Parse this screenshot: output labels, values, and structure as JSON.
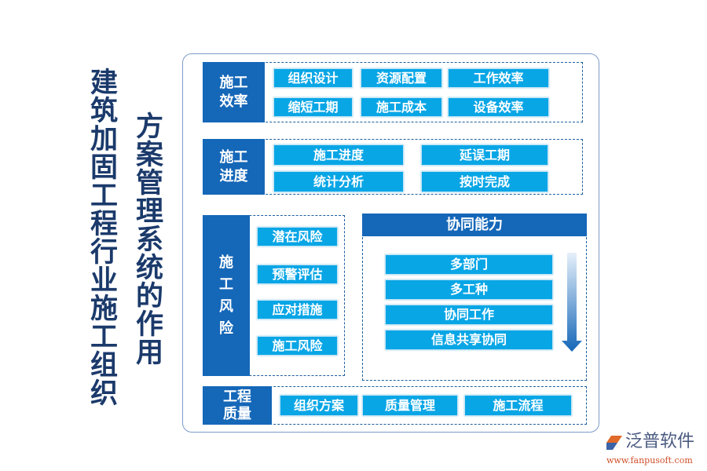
{
  "title_main": "建筑加固工程行业施工组织",
  "title_sub": "方案管理系统的作用",
  "efficiency": {
    "label": "施工\n效率",
    "items": [
      "组织设计",
      "资源配置",
      "工作效率",
      "缩短工期",
      "施工成本",
      "设备效率"
    ]
  },
  "progress": {
    "label": "施工\n进度",
    "items": [
      "施工进度",
      "延误工期",
      "统计分析",
      "按时完成"
    ]
  },
  "risk": {
    "label": "施\n工\n风\n险",
    "items": [
      "潜在风险",
      "预警评估",
      "应对措施",
      "施工风险"
    ]
  },
  "collab": {
    "header": "协同能力",
    "items": [
      "多部门",
      "多工种",
      "协同工作",
      "信息共享协同"
    ]
  },
  "quality": {
    "label": "工程\n质量",
    "items": [
      "组织方案",
      "质量管理",
      "施工流程"
    ]
  },
  "logo": {
    "name": "泛普软件",
    "url": "www.fanpusoft.com"
  },
  "colors": {
    "dark": "#1567b8",
    "item": "#09a6e6",
    "title": "#1b3a6b"
  }
}
